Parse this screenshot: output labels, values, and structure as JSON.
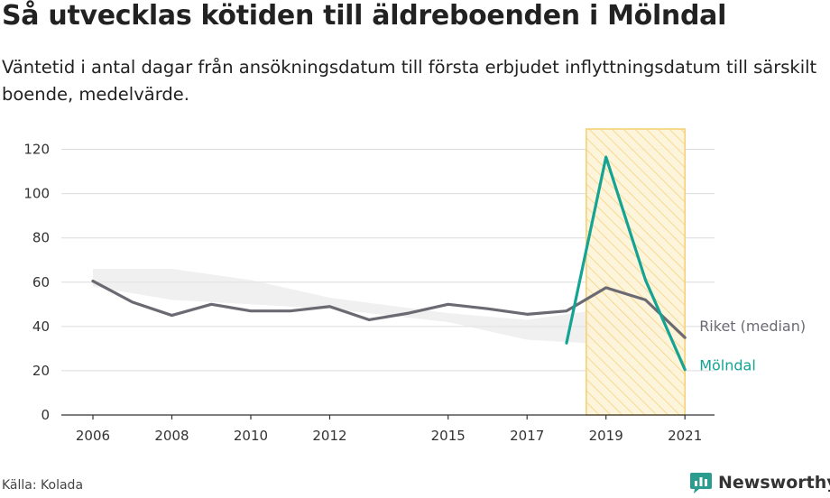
{
  "title": "Så utvecklas kötiden till äldreboenden i Mölndal",
  "subtitle": "Väntetid i antal dagar från ansökningsdatum till första erbjudet inflyttningsdatum till särskilt boende, medelvärde.",
  "source": "Källa: Kolada",
  "brand": {
    "name": "Newsworthy",
    "icon": "newsworthy-logo-icon"
  },
  "colors": {
    "riket": "#6b6a72",
    "molndal": "#15a393",
    "highlight_stroke": "#f5cf6e",
    "highlight_fill": "#fdf3d8",
    "range": "#e6e6e6",
    "grid": "#dcdcdc"
  },
  "chart_data": {
    "type": "line",
    "x_ticks": [
      "2006",
      "2008",
      "2010",
      "2012",
      "2015",
      "2017",
      "2019",
      "2021"
    ],
    "y_ticks": [
      "0",
      "20",
      "40",
      "60",
      "80",
      "100",
      "120"
    ],
    "xlim": [
      2005.2,
      2021.75
    ],
    "ylim": [
      0,
      130
    ],
    "highlight_range": [
      2018.5,
      2021
    ],
    "series": [
      {
        "name": "Riket (median)",
        "x": [
          2006,
          2007,
          2008,
          2009,
          2010,
          2011,
          2012,
          2013,
          2014,
          2015,
          2016,
          2017,
          2018,
          2019,
          2020,
          2021
        ],
        "values": [
          60.5,
          51,
          45,
          50,
          47,
          47,
          49,
          43,
          46,
          50,
          48,
          45.5,
          47,
          57.5,
          52,
          35
        ]
      },
      {
        "name": "Mölndal",
        "x": [
          2018,
          2019,
          2020,
          2021
        ],
        "values": [
          32.5,
          116.5,
          61,
          20.5
        ]
      }
    ],
    "range_band": {
      "x": [
        2006,
        2008,
        2010,
        2012,
        2015,
        2017,
        2019,
        2021
      ],
      "upper": [
        66,
        66,
        61,
        53,
        46,
        43,
        48,
        40
      ],
      "lower": [
        58,
        52,
        50,
        48,
        42,
        34,
        32,
        36
      ]
    }
  }
}
